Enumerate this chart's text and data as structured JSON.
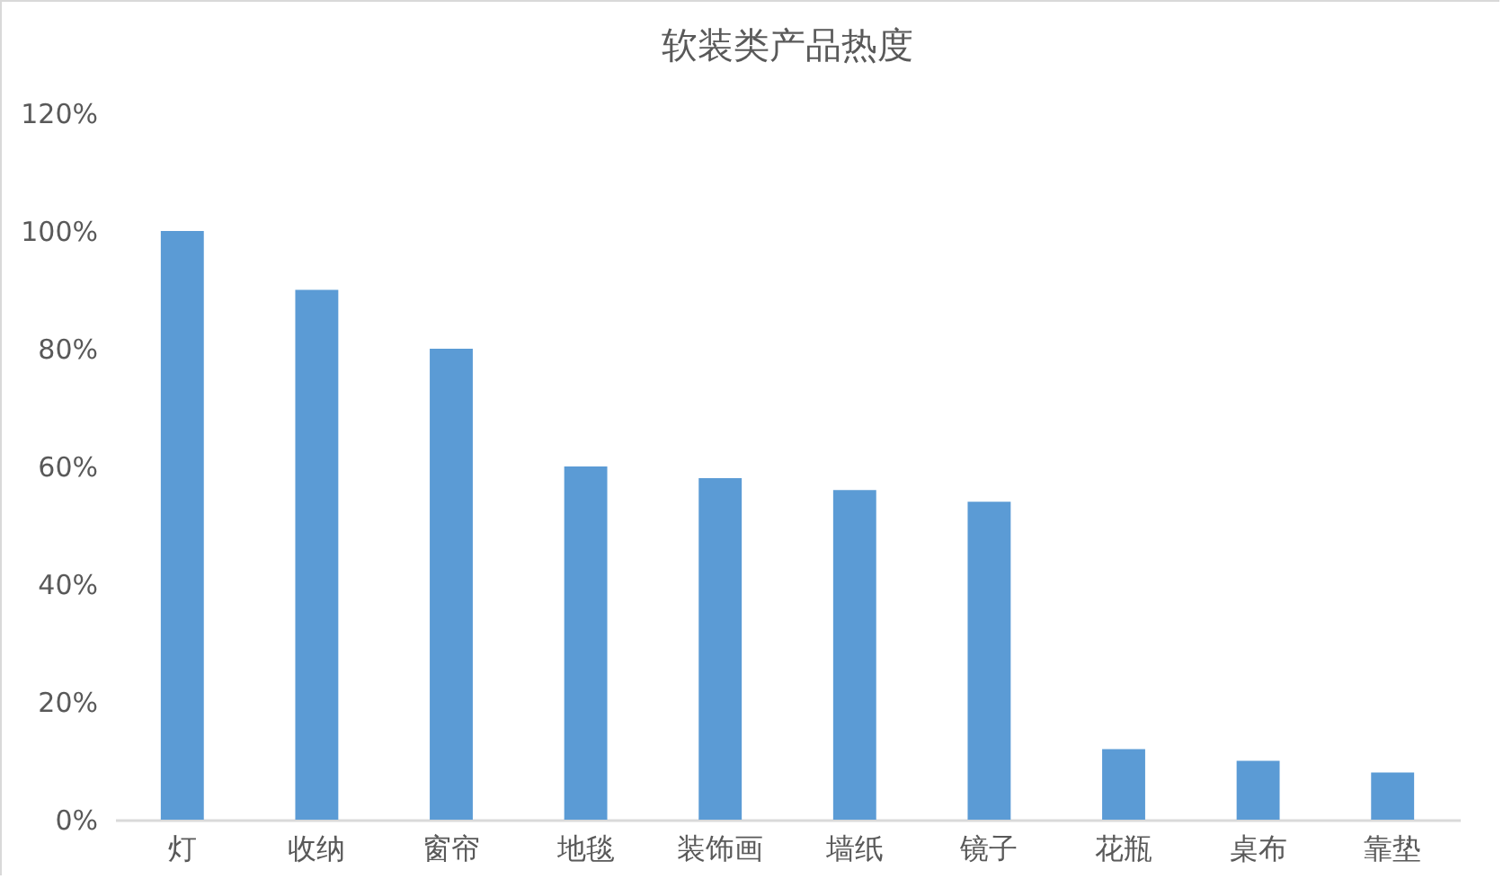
{
  "chart_data": {
    "type": "bar",
    "title": "软装类产品热度",
    "categories": [
      "灯",
      "收纳",
      "窗帘",
      "地毯",
      "装饰画",
      "墙纸",
      "镜子",
      "花瓶",
      "桌布",
      "靠垫"
    ],
    "values": [
      100,
      90,
      80,
      60,
      58,
      56,
      54,
      12,
      10,
      8
    ],
    "color": "#5b9bd5",
    "ylim": [
      0,
      120
    ],
    "yticks": [
      {
        "value": 0,
        "label": "0%"
      },
      {
        "value": 20,
        "label": "20%"
      },
      {
        "value": 40,
        "label": "40%"
      },
      {
        "value": 60,
        "label": "60%"
      },
      {
        "value": 80,
        "label": "80%"
      },
      {
        "value": 100,
        "label": "100%"
      },
      {
        "value": 120,
        "label": "120%"
      }
    ],
    "grid": false
  }
}
